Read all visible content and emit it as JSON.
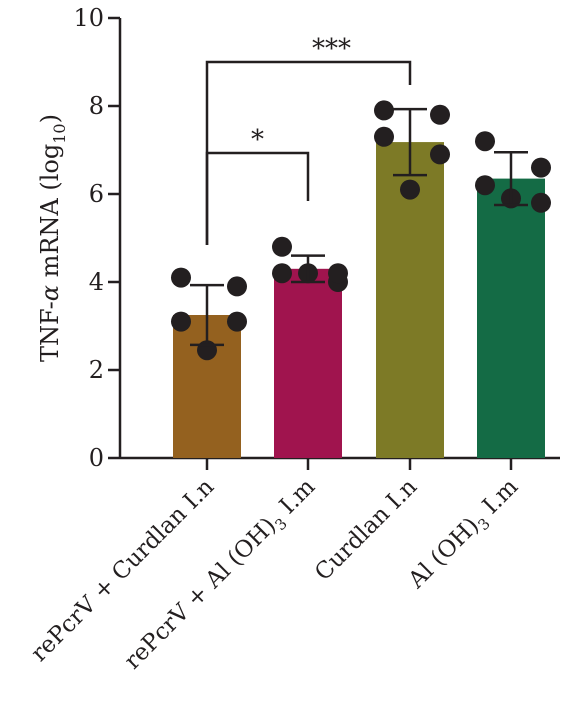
{
  "chart_data": {
    "type": "bar",
    "ylabel_main": "TNF-",
    "ylabel_alpha": "α",
    "ylabel_mid": " mRNA (log",
    "ylabel_sub": "10",
    "ylabel_end": ")",
    "ylim": [
      0,
      10
    ],
    "yticks": [
      "0",
      "2",
      "4",
      "6",
      "8",
      "10"
    ],
    "categories": [
      {
        "text": "rePcrV + Curdlan I.n",
        "sub": "",
        "tail": ""
      },
      {
        "text": "rePcrV + Al (OH)",
        "sub": "3",
        "tail": " I.m"
      },
      {
        "text": "Curdlan I.n",
        "sub": "",
        "tail": ""
      },
      {
        "text": "Al (OH)",
        "sub": "3",
        "tail": " I.m"
      }
    ],
    "values": [
      3.25,
      4.3,
      7.18,
      6.35
    ],
    "errors": [
      0.68,
      0.3,
      0.75,
      0.6
    ],
    "colors": [
      "#94611f",
      "#a0144e",
      "#7d7a26",
      "#146b45"
    ],
    "points": [
      [
        4.1,
        3.9,
        3.1,
        3.1,
        2.45
      ],
      [
        4.8,
        4.0,
        4.2,
        4.2,
        4.2
      ],
      [
        7.9,
        7.8,
        7.3,
        6.9,
        6.1
      ],
      [
        7.2,
        6.6,
        6.2,
        5.8,
        5.9
      ]
    ],
    "significance": [
      {
        "from": 0,
        "to": 1,
        "label": "*"
      },
      {
        "from": 0,
        "to": 2,
        "label": "***"
      }
    ]
  }
}
